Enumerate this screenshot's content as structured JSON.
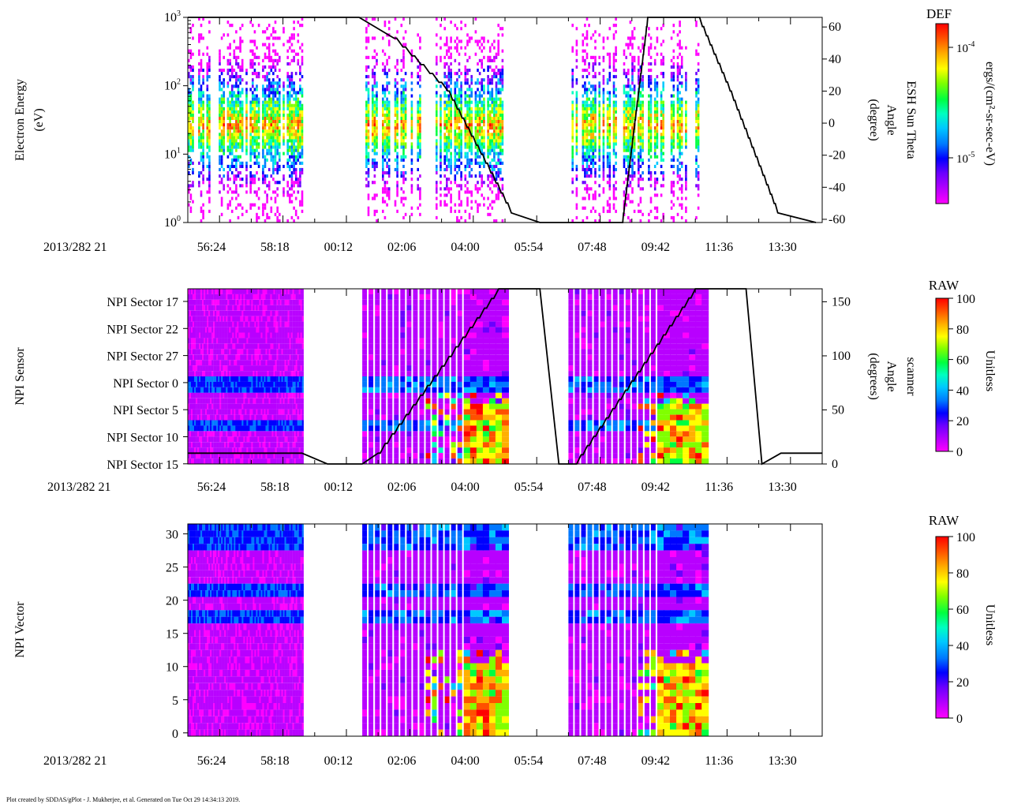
{
  "footer": "Plot created by SDDAS/gPlot - J. Mukherjee, et al.  Generated on Tue Oct 29 14:34:13 2019.",
  "time_ticks": [
    "56:24",
    "58:18",
    "00:12",
    "02:06",
    "04:00",
    "05:54",
    "07:48",
    "09:42",
    "11:36",
    "13:30"
  ],
  "date_label": "2013/282 21",
  "colors": {
    "colormap": [
      "#ff00ff",
      "#b800ff",
      "#6a00ff",
      "#0000ff",
      "#0078ff",
      "#00c8ff",
      "#00ffc0",
      "#00ff40",
      "#80ff00",
      "#ffff00",
      "#ffb000",
      "#ff5000",
      "#ff0000"
    ],
    "axis": "#000000",
    "overlay_line": "#000000"
  },
  "chart_data": [
    {
      "type": "heatmap",
      "panel": "top",
      "ylabel_line1": "Electron Energy",
      "ylabel_line2": "(eV)",
      "yscale": "log",
      "ylim": [
        1,
        1000
      ],
      "yticks": [
        {
          "value": 1,
          "base": "10",
          "exp": "0"
        },
        {
          "value": 10,
          "base": "10",
          "exp": "1"
        },
        {
          "value": 100,
          "base": "10",
          "exp": "2"
        },
        {
          "value": 1000,
          "base": "10",
          "exp": "3"
        }
      ],
      "peak_energy_eV": 25,
      "data_intervals_min": [
        [
          0,
          3.6
        ],
        [
          5.6,
          9.9
        ],
        [
          12.1,
          16.1
        ]
      ],
      "right_axis": {
        "label_line1": "ESH Sun Theta",
        "label_line2": "Angle",
        "label_line3": "(degree)",
        "ylim": [
          -62,
          66
        ],
        "ticks": [
          "60",
          "40",
          "20",
          "0",
          "-20",
          "-40",
          "-60"
        ],
        "tick_values": [
          60,
          40,
          20,
          0,
          -20,
          -40,
          -60
        ]
      },
      "overlay_series": {
        "name": "ESH Sun Theta",
        "x_min": [
          0,
          3.6,
          5.4,
          6.5,
          8.2,
          9.4,
          10.2,
          11.1,
          13.7,
          14.5,
          16.1,
          17.1,
          18.6,
          19.8
        ],
        "y": [
          66,
          66,
          66,
          53,
          20,
          -25,
          -56,
          -62,
          -62,
          66,
          66,
          20,
          -56,
          -62
        ]
      },
      "colorbar": {
        "title": "DEF",
        "label": "ergs/(cm²-sr-sec-eV)",
        "scale": "log",
        "ticks": [
          {
            "base": "10",
            "exp": "-4"
          },
          {
            "base": "10",
            "exp": "-5"
          }
        ]
      }
    },
    {
      "type": "heatmap",
      "panel": "middle",
      "ylabel": "NPI Sensor",
      "categories": [
        "NPI Sector 17",
        "NPI Sector 22",
        "NPI Sector 27",
        "NPI Sector 0",
        "NPI Sector 5",
        "NPI Sector 10",
        "NPI Sector 15"
      ],
      "data_intervals_min": [
        [
          0,
          3.6
        ],
        [
          5.5,
          10.0
        ],
        [
          12.0,
          16.2
        ]
      ],
      "right_axis": {
        "label_line1": "scanner",
        "label_line2": "Angle",
        "label_line3": "(degrees)",
        "ylim": [
          0,
          162
        ],
        "ticks": [
          "150",
          "100",
          "50",
          "0"
        ],
        "tick_values": [
          150,
          100,
          50,
          0
        ]
      },
      "overlay_series": {
        "name": "scanner angle",
        "x_min": [
          0,
          3.6,
          4.4,
          5.5,
          6.0,
          9.8,
          11.1,
          11.7,
          12.2,
          16.0,
          17.6,
          18.1,
          18.7,
          20.0
        ],
        "y": [
          10,
          10,
          0,
          0,
          10,
          162,
          162,
          0,
          0,
          162,
          162,
          0,
          10,
          10
        ]
      },
      "colorbar": {
        "title": "RAW",
        "label": "Unitless",
        "ticks": [
          "100",
          "80",
          "60",
          "40",
          "20",
          "0"
        ],
        "range": [
          0,
          100
        ]
      }
    },
    {
      "type": "heatmap",
      "panel": "bottom",
      "ylabel": "NPI Vector",
      "ylim": [
        -0.5,
        31.5
      ],
      "yticks": [
        "30",
        "25",
        "20",
        "15",
        "10",
        "5",
        "0"
      ],
      "ytick_values": [
        30,
        25,
        20,
        15,
        10,
        5,
        0
      ],
      "data_intervals_min": [
        [
          0,
          3.6
        ],
        [
          5.5,
          10.0
        ],
        [
          12.0,
          16.2
        ]
      ],
      "colorbar": {
        "title": "RAW",
        "label": "Unitless",
        "ticks": [
          "100",
          "80",
          "60",
          "40",
          "20",
          "0"
        ],
        "range": [
          0,
          100
        ]
      }
    }
  ]
}
